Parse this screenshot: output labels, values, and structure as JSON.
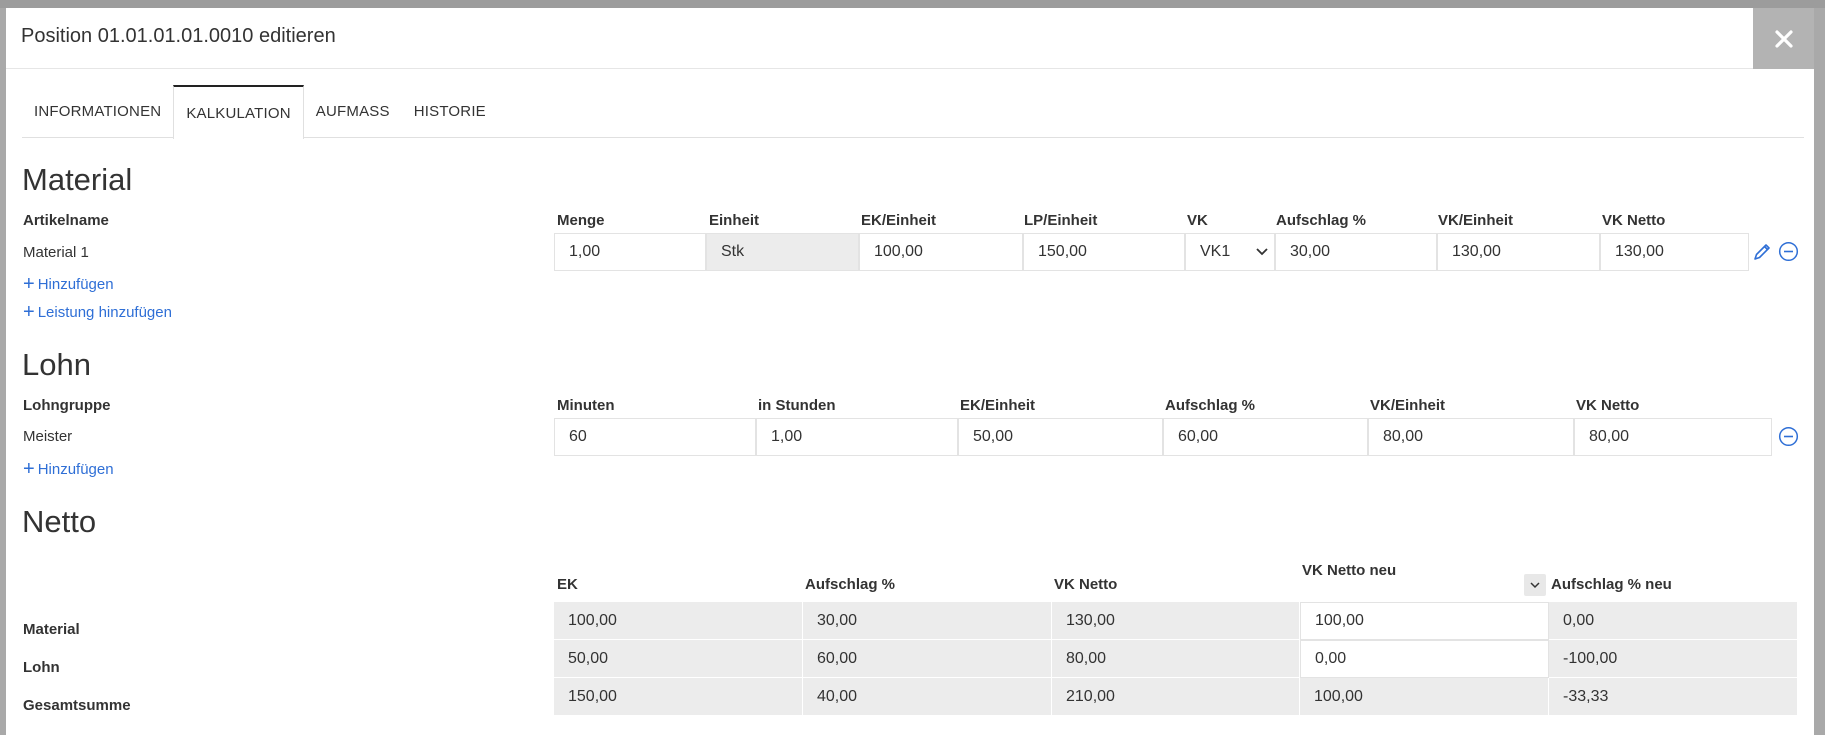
{
  "modal": {
    "title": "Position 01.01.01.01.0010 editieren"
  },
  "tabs": [
    {
      "label": "INFORMATIONEN"
    },
    {
      "label": "KALKULATION"
    },
    {
      "label": "AUFMASS"
    },
    {
      "label": "HISTORIE"
    }
  ],
  "material": {
    "title": "Material",
    "headers": {
      "artikelname": "Artikelname",
      "menge": "Menge",
      "einheit": "Einheit",
      "ek_einheit": "EK/Einheit",
      "lp_einheit": "LP/Einheit",
      "vk": "VK",
      "aufschlag": "Aufschlag %",
      "vk_einheit": "VK/Einheit",
      "vk_netto": "VK Netto"
    },
    "row": {
      "name": "Material 1",
      "menge": "1,00",
      "einheit": "Stk",
      "ek_einheit": "100,00",
      "lp_einheit": "150,00",
      "vk": "VK1",
      "aufschlag": "30,00",
      "vk_einheit": "130,00",
      "vk_netto": "130,00"
    },
    "add_label": "Hinzufügen",
    "add_service_label": "Leistung hinzufügen"
  },
  "lohn": {
    "title": "Lohn",
    "headers": {
      "lohngruppe": "Lohngruppe",
      "minuten": "Minuten",
      "stunden": "in Stunden",
      "ek_einheit": "EK/Einheit",
      "aufschlag": "Aufschlag %",
      "vk_einheit": "VK/Einheit",
      "vk_netto": "VK Netto"
    },
    "row": {
      "name": "Meister",
      "minuten": "60",
      "stunden": "1,00",
      "ek_einheit": "50,00",
      "aufschlag": "60,00",
      "vk_einheit": "80,00",
      "vk_netto": "80,00"
    },
    "add_label": "Hinzufügen"
  },
  "netto": {
    "title": "Netto",
    "headers": {
      "ek": "EK",
      "aufschlag": "Aufschlag %",
      "vk_netto": "VK Netto",
      "vk_netto_neu": "VK Netto neu",
      "aufschlag_neu": "Aufschlag % neu"
    },
    "rows": [
      {
        "label": "Material",
        "ek": "100,00",
        "aufschlag": "30,00",
        "vk_netto": "130,00",
        "vk_netto_neu": "100,00",
        "aufschlag_neu": "0,00"
      },
      {
        "label": "Lohn",
        "ek": "50,00",
        "aufschlag": "60,00",
        "vk_netto": "80,00",
        "vk_netto_neu": "0,00",
        "aufschlag_neu": "-100,00"
      },
      {
        "label": "Gesamtsumme",
        "ek": "150,00",
        "aufschlag": "40,00",
        "vk_netto": "210,00",
        "vk_netto_neu": "100,00",
        "aufschlag_neu": "-33,33"
      }
    ]
  },
  "colors": {
    "link": "#2f6fd6",
    "close_bg": "#b3b3b3",
    "readonly_bg": "#ececec"
  }
}
